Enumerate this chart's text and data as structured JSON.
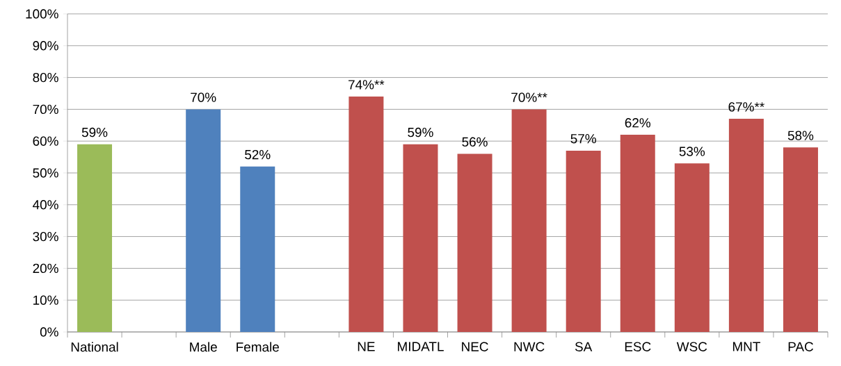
{
  "chart_data": {
    "type": "bar",
    "categories": [
      "National",
      null,
      "Male",
      "Female",
      null,
      "NE",
      "MIDATL",
      "NEC",
      "NWC",
      "SA",
      "ESC",
      "WSC",
      "MNT",
      "PAC"
    ],
    "values": [
      59,
      null,
      70,
      52,
      null,
      74,
      59,
      56,
      70,
      57,
      62,
      53,
      67,
      58
    ],
    "colors": [
      "#9bbb59",
      null,
      "#4f81bd",
      "#4f81bd",
      null,
      "#c0504d",
      "#c0504d",
      "#c0504d",
      "#c0504d",
      "#c0504d",
      "#c0504d",
      "#c0504d",
      "#c0504d",
      "#c0504d"
    ],
    "value_labels": [
      "59%",
      null,
      "70%",
      "52%",
      null,
      "74%**",
      "59%",
      "56%",
      "70%**",
      "57%",
      "62%",
      "53%",
      "67%**",
      "58%"
    ],
    "ylim": [
      0,
      100
    ],
    "yticks": [
      {
        "value": 0,
        "label": "0%"
      },
      {
        "value": 10,
        "label": "10%"
      },
      {
        "value": 20,
        "label": "20%"
      },
      {
        "value": 30,
        "label": "30%"
      },
      {
        "value": 40,
        "label": "40%"
      },
      {
        "value": 50,
        "label": "50%"
      },
      {
        "value": 60,
        "label": "60%"
      },
      {
        "value": 70,
        "label": "70%"
      },
      {
        "value": 80,
        "label": "80%"
      },
      {
        "value": 90,
        "label": "90%"
      },
      {
        "value": 100,
        "label": "100%"
      }
    ],
    "grid": "y"
  }
}
